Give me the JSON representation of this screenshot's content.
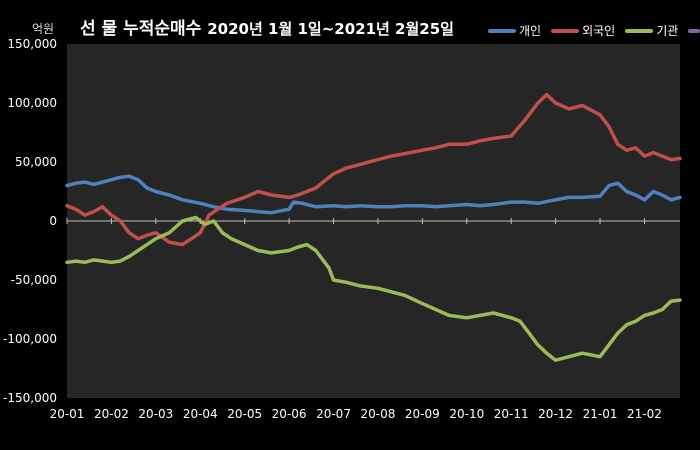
{
  "chart_data": {
    "type": "line",
    "title_main": "선 물 누적순매수",
    "title_date": "2020년 1월 1일~2021년 2월25일",
    "unit": "억원",
    "y_ticks": [
      "150,000",
      "100,000",
      "50,000",
      "0",
      "-50,000",
      "-100,000",
      "-150,000"
    ],
    "x_ticks": [
      "20-01",
      "20-02",
      "20-03",
      "20-04",
      "20-05",
      "20-06",
      "20-07",
      "20-08",
      "20-09",
      "20-10",
      "20-11",
      "20-12",
      "21-01",
      "21-02"
    ],
    "ylim": [
      -150000,
      150000
    ],
    "xlim": [
      0,
      13.8
    ],
    "grid": false,
    "legend_position": "top-right",
    "series": [
      {
        "name": "개인",
        "color": "#4F81BD",
        "x": [
          0,
          0.2,
          0.4,
          0.6,
          0.8,
          1.0,
          1.2,
          1.4,
          1.6,
          1.8,
          2.0,
          2.3,
          2.6,
          3.0,
          3.3,
          3.6,
          4.0,
          4.3,
          4.6,
          5.0,
          5.1,
          5.3,
          5.6,
          6.0,
          6.3,
          6.6,
          7.0,
          7.3,
          7.6,
          8.0,
          8.3,
          8.6,
          9.0,
          9.3,
          9.6,
          10.0,
          10.3,
          10.6,
          11.0,
          11.3,
          11.6,
          12.0,
          12.2,
          12.4,
          12.6,
          12.8,
          13.0,
          13.2,
          13.4,
          13.6,
          13.8
        ],
        "values": [
          30000,
          32000,
          33000,
          31000,
          33000,
          35000,
          37000,
          38000,
          35000,
          28000,
          25000,
          22000,
          18000,
          15000,
          12000,
          10000,
          9000,
          8000,
          7000,
          10000,
          16000,
          15000,
          12000,
          13000,
          12000,
          13000,
          12000,
          12000,
          13000,
          13000,
          12000,
          13000,
          14000,
          13000,
          14000,
          16000,
          16000,
          15000,
          18000,
          20000,
          20000,
          21000,
          30000,
          32000,
          25000,
          22000,
          18000,
          25000,
          22000,
          18000,
          20000
        ]
      },
      {
        "name": "외국인",
        "color": "#C0504D",
        "x": [
          0,
          0.2,
          0.4,
          0.6,
          0.8,
          1.0,
          1.2,
          1.4,
          1.6,
          1.8,
          2.0,
          2.3,
          2.6,
          3.0,
          3.2,
          3.4,
          3.6,
          4.0,
          4.3,
          4.6,
          5.0,
          5.2,
          5.4,
          5.6,
          6.0,
          6.3,
          6.6,
          7.0,
          7.3,
          7.6,
          8.0,
          8.3,
          8.6,
          9.0,
          9.3,
          9.6,
          10.0,
          10.3,
          10.6,
          10.8,
          11.0,
          11.3,
          11.6,
          12.0,
          12.2,
          12.4,
          12.6,
          12.8,
          13.0,
          13.2,
          13.4,
          13.6,
          13.8
        ],
        "values": [
          13000,
          10000,
          5000,
          8000,
          12000,
          5000,
          0,
          -10000,
          -15000,
          -12000,
          -10000,
          -18000,
          -20000,
          -10000,
          5000,
          10000,
          15000,
          20000,
          25000,
          22000,
          20000,
          22000,
          25000,
          28000,
          40000,
          45000,
          48000,
          52000,
          55000,
          57000,
          60000,
          62000,
          65000,
          65000,
          68000,
          70000,
          72000,
          85000,
          100000,
          107000,
          100000,
          95000,
          98000,
          90000,
          80000,
          65000,
          60000,
          62000,
          55000,
          58000,
          55000,
          52000,
          53000
        ]
      },
      {
        "name": "기관",
        "color": "#9BBB59",
        "x": [
          0,
          0.2,
          0.4,
          0.6,
          0.8,
          1.0,
          1.2,
          1.4,
          1.6,
          1.8,
          2.0,
          2.3,
          2.6,
          2.9,
          3.1,
          3.3,
          3.5,
          3.7,
          4.0,
          4.3,
          4.6,
          5.0,
          5.2,
          5.4,
          5.6,
          5.9,
          6.0,
          6.3,
          6.6,
          7.0,
          7.3,
          7.6,
          8.0,
          8.3,
          8.6,
          9.0,
          9.3,
          9.6,
          10.0,
          10.2,
          10.4,
          10.6,
          10.8,
          11.0,
          11.3,
          11.6,
          12.0,
          12.2,
          12.4,
          12.6,
          12.8,
          13.0,
          13.2,
          13.4,
          13.6,
          13.8
        ],
        "values": [
          -35000,
          -34000,
          -35000,
          -33000,
          -34000,
          -35000,
          -34000,
          -30000,
          -25000,
          -20000,
          -15000,
          -10000,
          0,
          3000,
          -3000,
          0,
          -10000,
          -15000,
          -20000,
          -25000,
          -27000,
          -25000,
          -22000,
          -20000,
          -25000,
          -40000,
          -50000,
          -52000,
          -55000,
          -57000,
          -60000,
          -63000,
          -70000,
          -75000,
          -80000,
          -82000,
          -80000,
          -78000,
          -82000,
          -85000,
          -95000,
          -105000,
          -112000,
          -118000,
          -115000,
          -112000,
          -115000,
          -105000,
          -95000,
          -88000,
          -85000,
          -80000,
          -78000,
          -75000,
          -68000,
          -67000
        ]
      },
      {
        "name": "",
        "color": "#8064A2",
        "x": [],
        "values": []
      }
    ]
  }
}
